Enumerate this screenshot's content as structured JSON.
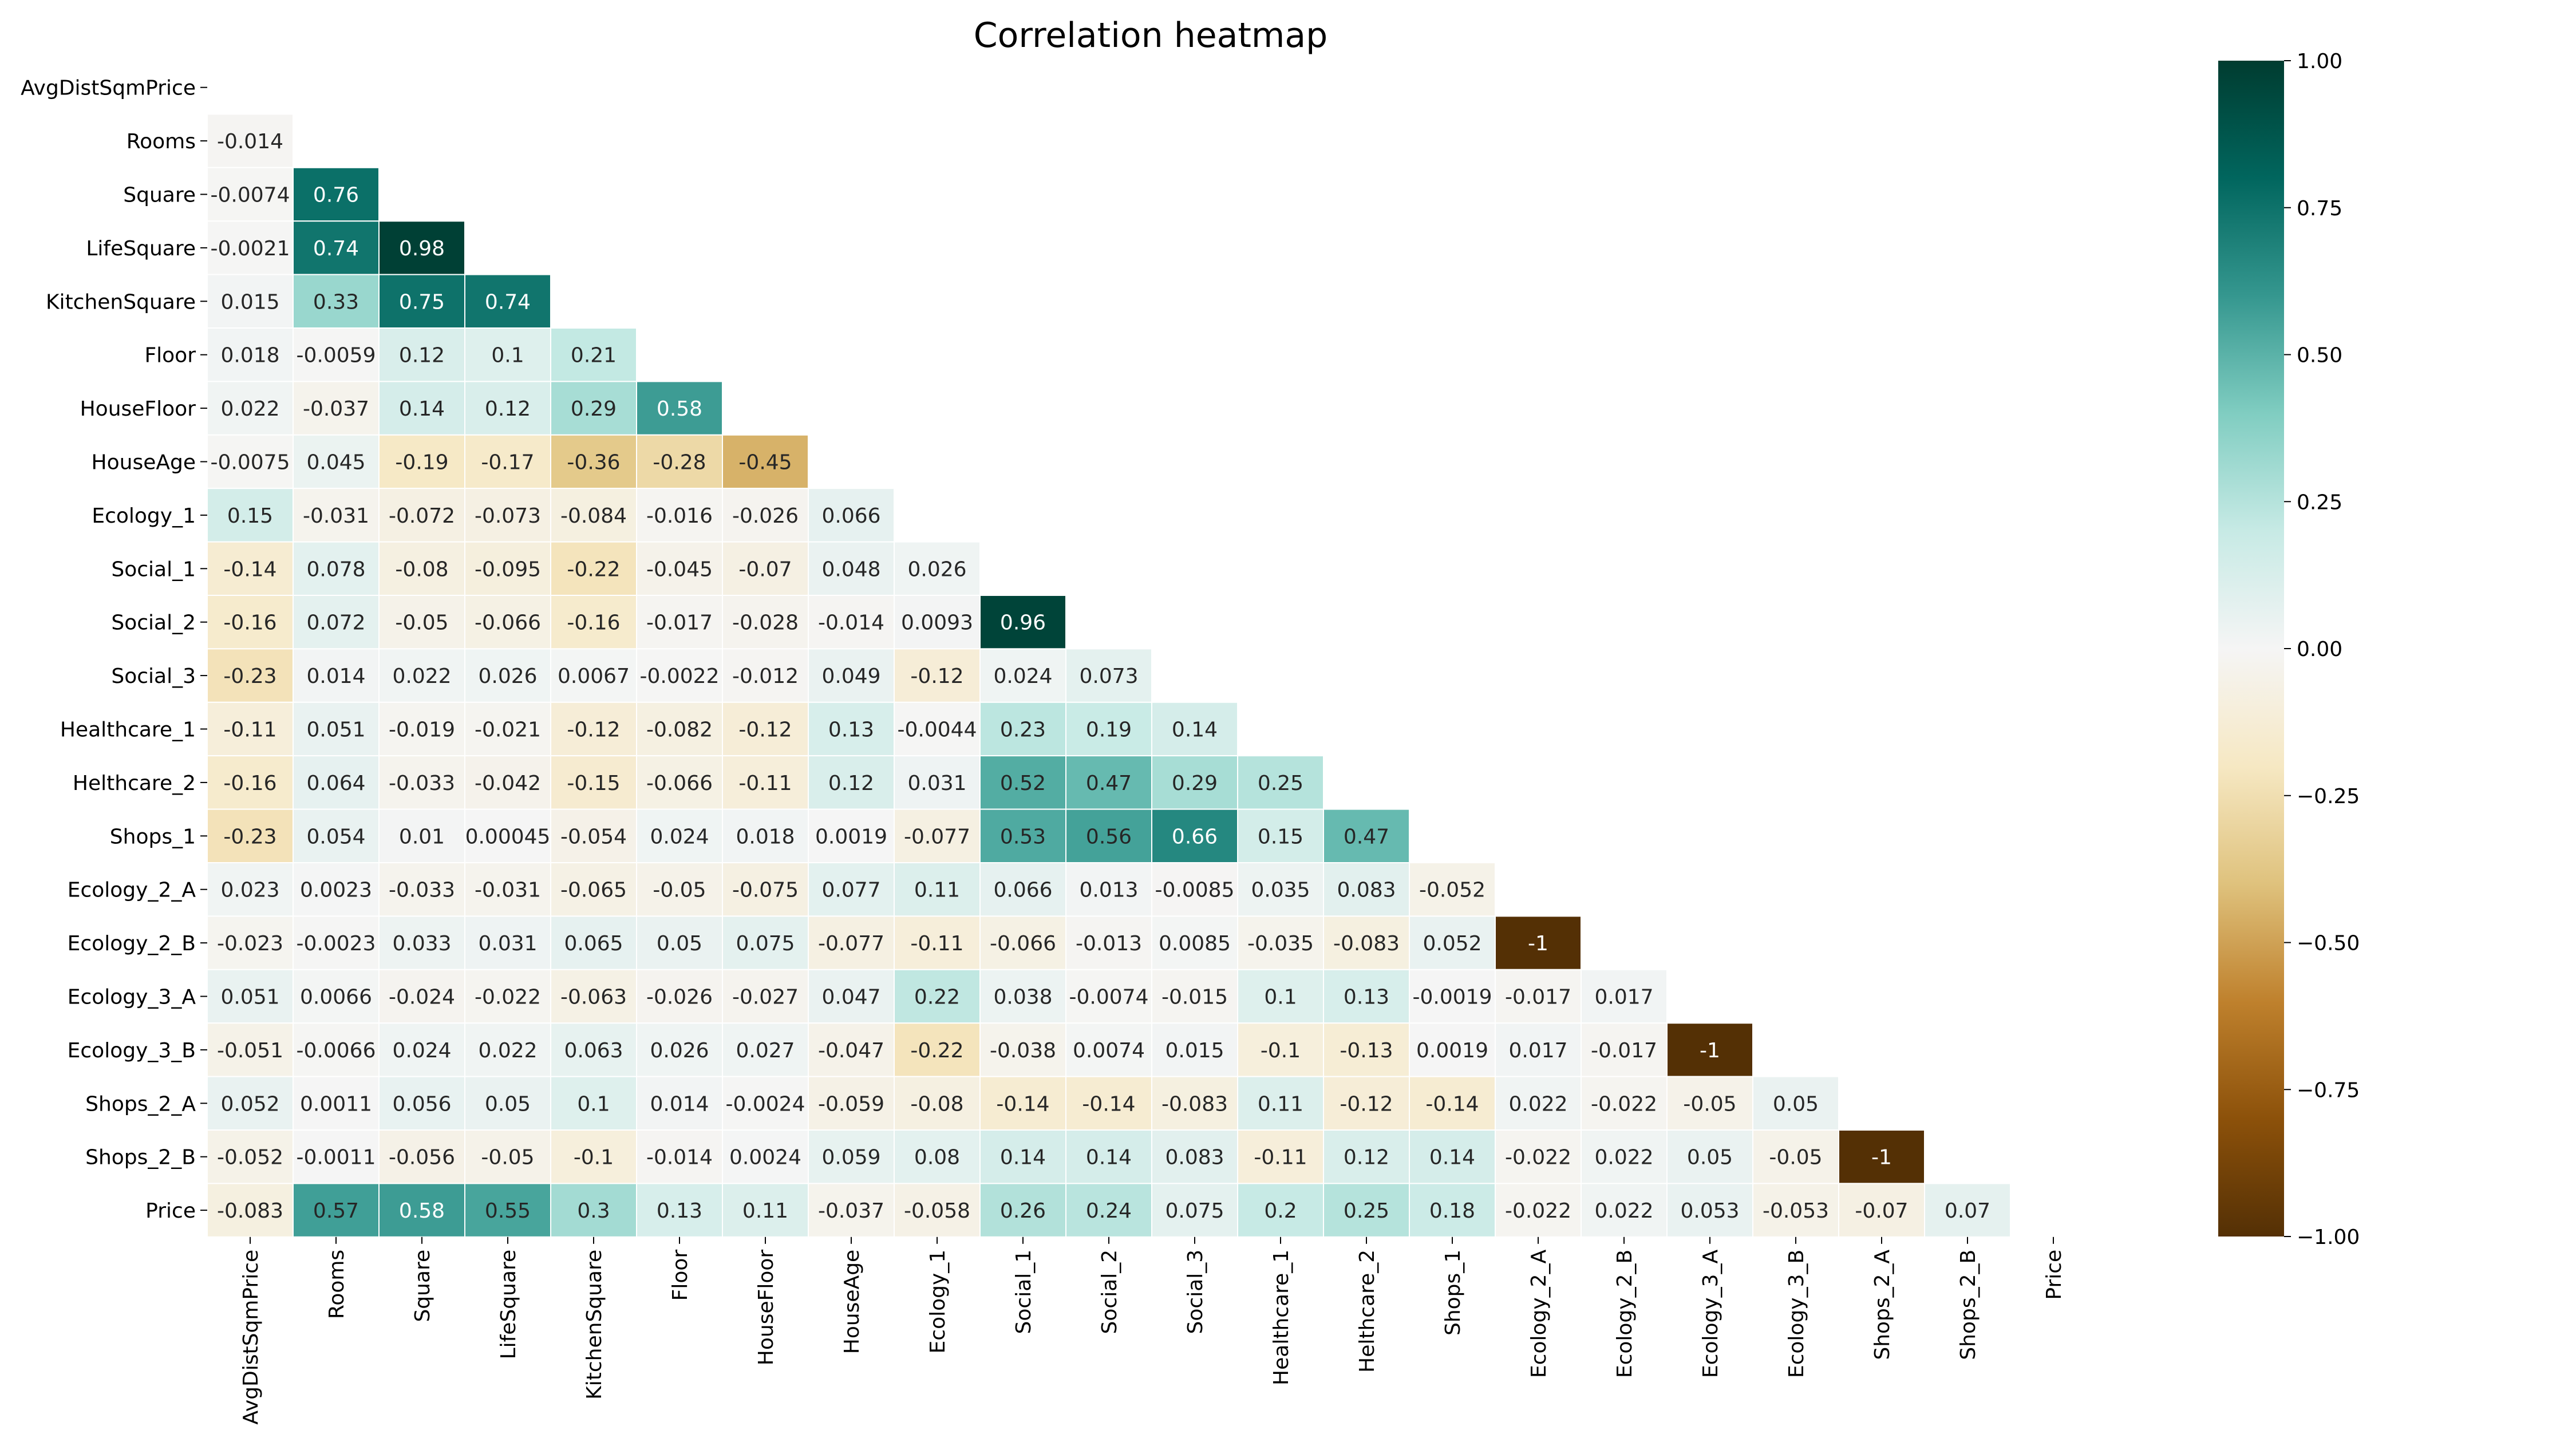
{
  "chart_data": {
    "type": "heatmap",
    "title": "Correlation heatmap",
    "variables": [
      "AvgDistSqmPrice",
      "Rooms",
      "Square",
      "LifeSquare",
      "KitchenSquare",
      "Floor",
      "HouseFloor",
      "HouseAge",
      "Ecology_1",
      "Social_1",
      "Social_2",
      "Social_3",
      "Healthcare_1",
      "Helthcare_2",
      "Shops_1",
      "Ecology_2_A",
      "Ecology_2_B",
      "Ecology_3_A",
      "Ecology_3_B",
      "Shops_2_A",
      "Shops_2_B",
      "Price"
    ],
    "mask": "upper-triangle-including-diagonal",
    "matrix_lower": [
      [],
      [
        -0.014
      ],
      [
        -0.0074,
        0.76
      ],
      [
        -0.0021,
        0.74,
        0.98
      ],
      [
        0.015,
        0.33,
        0.75,
        0.74
      ],
      [
        0.018,
        -0.0059,
        0.12,
        0.1,
        0.21
      ],
      [
        0.022,
        -0.037,
        0.14,
        0.12,
        0.29,
        0.58
      ],
      [
        -0.0075,
        0.045,
        -0.19,
        -0.17,
        -0.36,
        -0.28,
        -0.45
      ],
      [
        0.15,
        -0.031,
        -0.072,
        -0.073,
        -0.084,
        -0.016,
        -0.026,
        0.066
      ],
      [
        -0.14,
        0.078,
        -0.08,
        -0.095,
        -0.22,
        -0.045,
        -0.07,
        0.048,
        0.026
      ],
      [
        -0.16,
        0.072,
        -0.05,
        -0.066,
        -0.16,
        -0.017,
        -0.028,
        -0.014,
        0.0093,
        0.96
      ],
      [
        -0.23,
        0.014,
        0.022,
        0.026,
        0.0067,
        -0.0022,
        -0.012,
        0.049,
        -0.12,
        0.024,
        0.073
      ],
      [
        -0.11,
        0.051,
        -0.019,
        -0.021,
        -0.12,
        -0.082,
        -0.12,
        0.13,
        -0.0044,
        0.23,
        0.19,
        0.14
      ],
      [
        -0.16,
        0.064,
        -0.033,
        -0.042,
        -0.15,
        -0.066,
        -0.11,
        0.12,
        0.031,
        0.52,
        0.47,
        0.29,
        0.25
      ],
      [
        -0.23,
        0.054,
        0.01,
        0.00045,
        -0.054,
        0.024,
        0.018,
        0.0019,
        -0.077,
        0.53,
        0.56,
        0.66,
        0.15,
        0.47
      ],
      [
        0.023,
        0.0023,
        -0.033,
        -0.031,
        -0.065,
        -0.05,
        -0.075,
        0.077,
        0.11,
        0.066,
        0.013,
        -0.0085,
        0.035,
        0.083,
        -0.052
      ],
      [
        -0.023,
        -0.0023,
        0.033,
        0.031,
        0.065,
        0.05,
        0.075,
        -0.077,
        -0.11,
        -0.066,
        -0.013,
        0.0085,
        -0.035,
        -0.083,
        0.052,
        -1
      ],
      [
        0.051,
        0.0066,
        -0.024,
        -0.022,
        -0.063,
        -0.026,
        -0.027,
        0.047,
        0.22,
        0.038,
        -0.0074,
        -0.015,
        0.1,
        0.13,
        -0.0019,
        -0.017,
        0.017
      ],
      [
        -0.051,
        -0.0066,
        0.024,
        0.022,
        0.063,
        0.026,
        0.027,
        -0.047,
        -0.22,
        -0.038,
        0.0074,
        0.015,
        -0.1,
        -0.13,
        0.0019,
        0.017,
        -0.017,
        -1
      ],
      [
        0.052,
        0.0011,
        0.056,
        0.05,
        0.1,
        0.014,
        -0.0024,
        -0.059,
        -0.08,
        -0.14,
        -0.14,
        -0.083,
        0.11,
        -0.12,
        -0.14,
        0.022,
        -0.022,
        -0.05,
        0.05
      ],
      [
        -0.052,
        -0.0011,
        -0.056,
        -0.05,
        -0.1,
        -0.014,
        0.0024,
        0.059,
        0.08,
        0.14,
        0.14,
        0.083,
        -0.11,
        0.12,
        0.14,
        -0.022,
        0.022,
        0.05,
        -0.05,
        -1
      ],
      [
        -0.083,
        0.57,
        0.58,
        0.55,
        0.3,
        0.13,
        0.11,
        -0.037,
        -0.058,
        0.26,
        0.24,
        0.075,
        0.2,
        0.25,
        0.18,
        -0.022,
        0.022,
        0.053,
        -0.053,
        -0.07,
        0.07
      ]
    ],
    "colormap": "BrBG",
    "colorbar": {
      "range": [
        -1.0,
        1.0
      ],
      "ticks": [
        "1.00",
        "0.75",
        "0.50",
        "0.25",
        "0.00",
        "−0.25",
        "−0.50",
        "−0.75",
        "−1.00"
      ],
      "tick_values": [
        1,
        0.75,
        0.5,
        0.25,
        0,
        -0.25,
        -0.5,
        -0.75,
        -1
      ]
    },
    "legend_placement": "right"
  }
}
